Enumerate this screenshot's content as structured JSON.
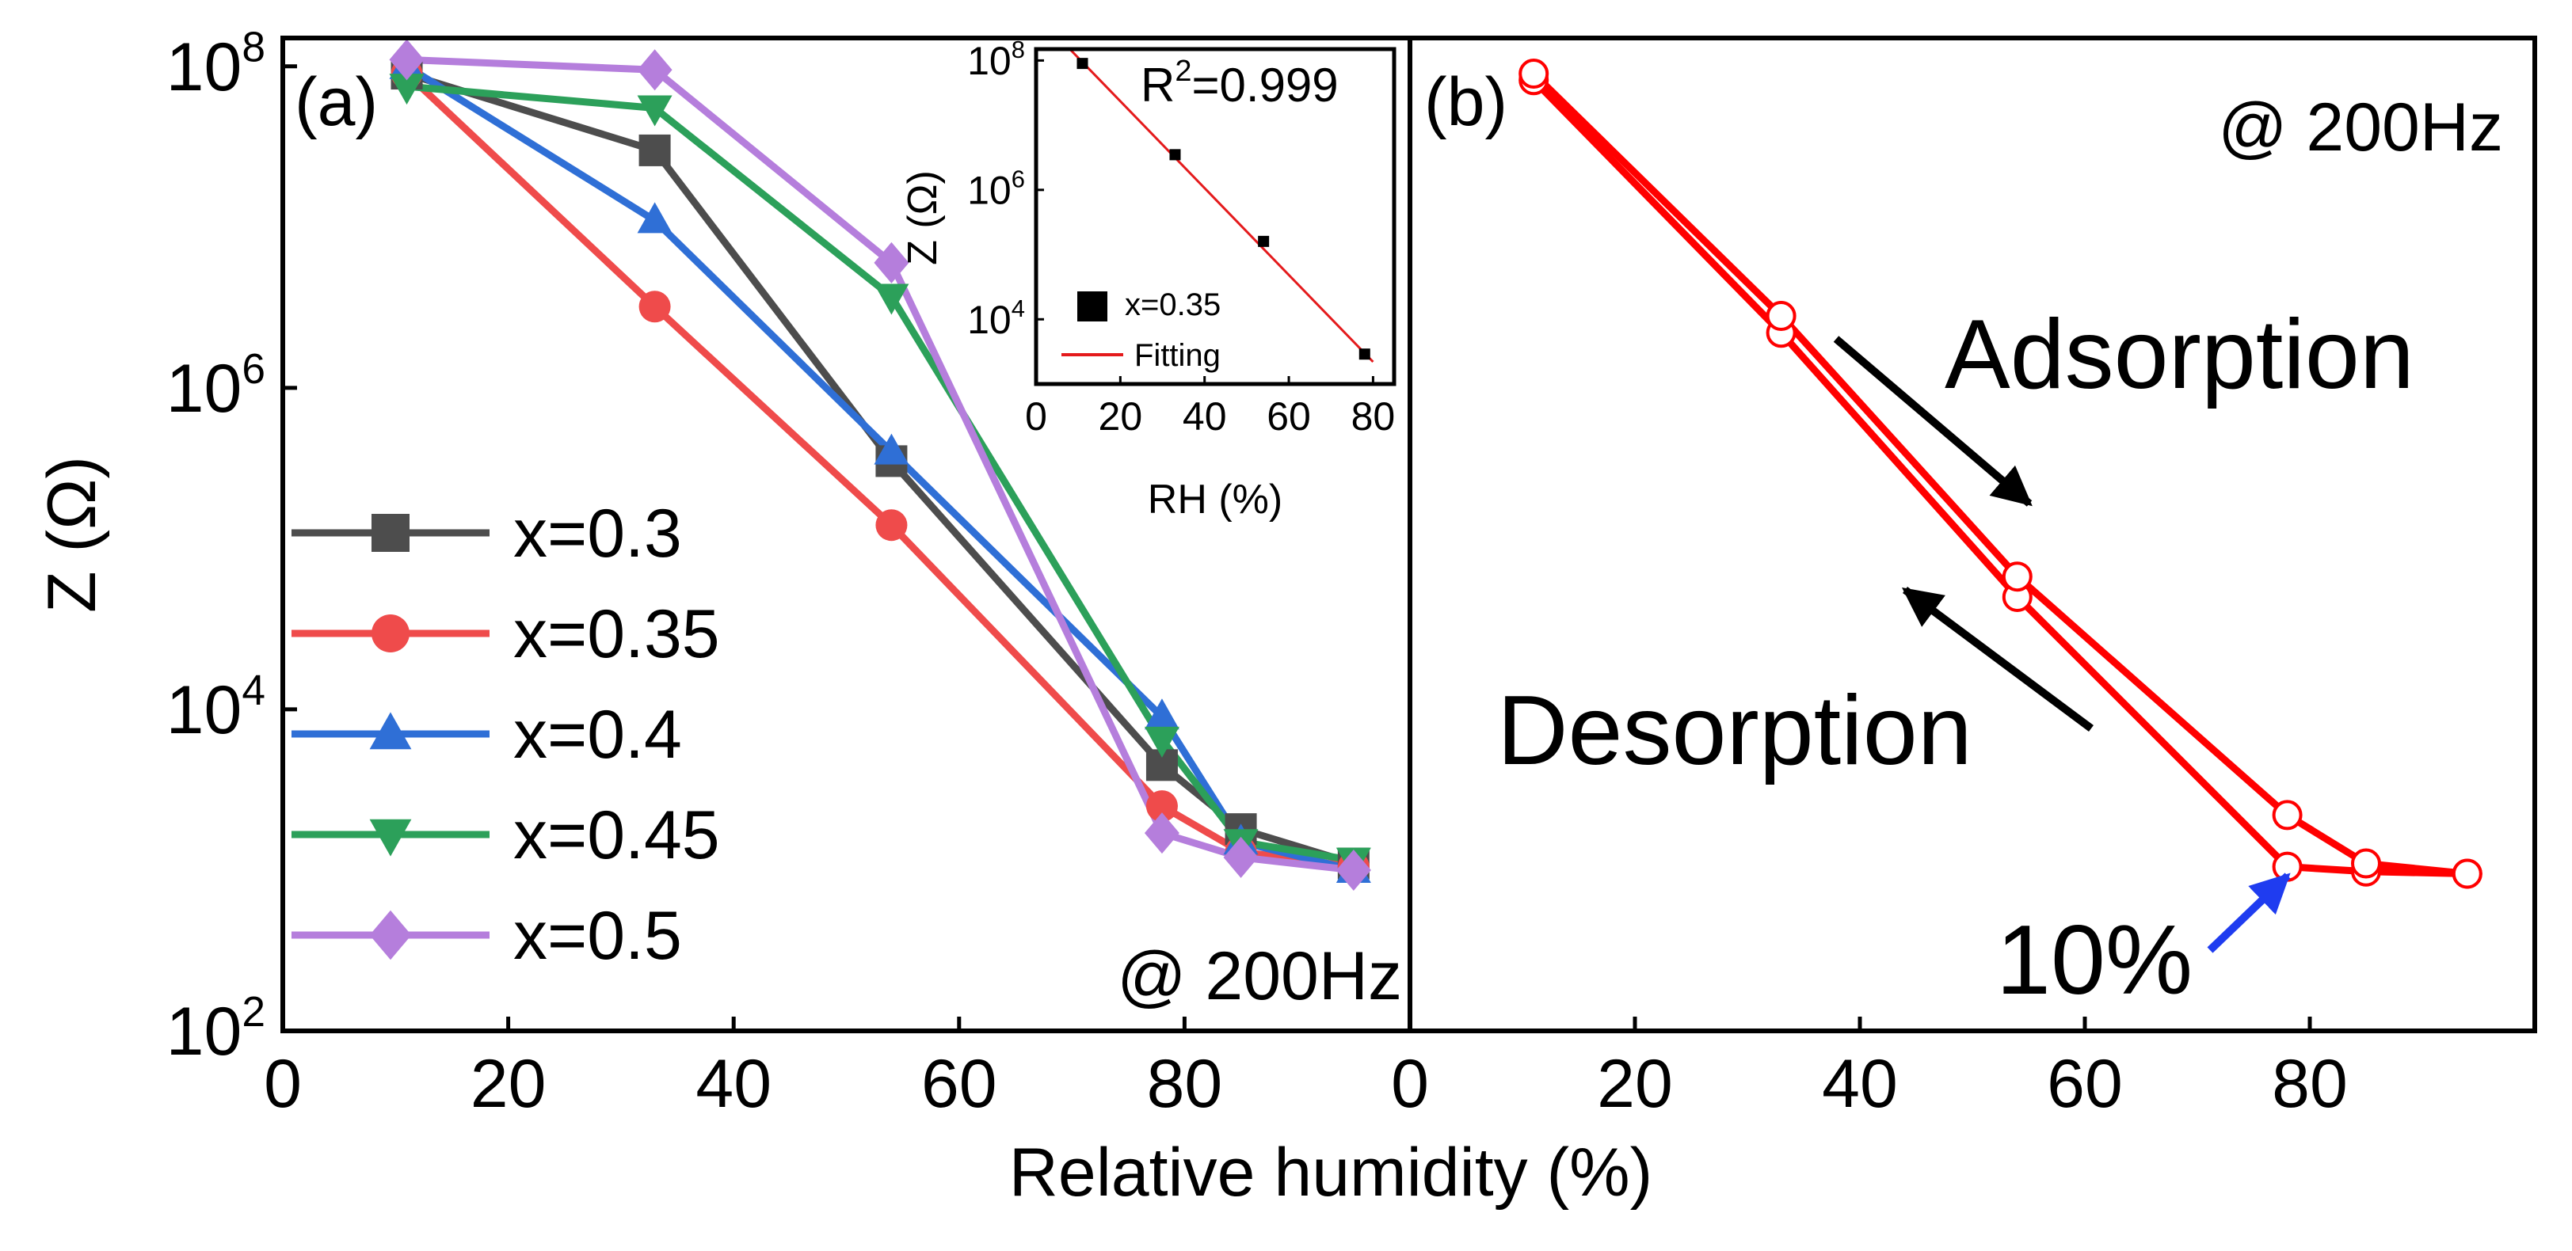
{
  "figure": {
    "xlabel": "Relative humidity (%)",
    "ylabel_main": "Z",
    "ylabel_unit": "(Ω)"
  },
  "chart_data": [
    {
      "id": "a",
      "type": "line",
      "panel_label": "(a)",
      "annotation": "@ 200Hz",
      "xlabel": "Relative humidity (%)",
      "ylabel": "Z (Ω)",
      "yscale": "log",
      "xlim": [
        0,
        100
      ],
      "ylim": [
        100,
        150000000
      ],
      "x_ticks": [
        0,
        20,
        40,
        60,
        80
      ],
      "y_ticks": [
        {
          "value": 100,
          "base": "10",
          "exp": "2"
        },
        {
          "value": 10000,
          "base": "10",
          "exp": "4"
        },
        {
          "value": 1000000,
          "base": "10",
          "exp": "6"
        },
        {
          "value": 100000000,
          "base": "10",
          "exp": "8"
        }
      ],
      "x": [
        11,
        33,
        54,
        78,
        85,
        95
      ],
      "series": [
        {
          "name": "x=0.3",
          "color": "#4d4d4d",
          "marker": "square",
          "values": [
            90000000,
            30000000,
            350000,
            4500,
            1800,
            1100
          ]
        },
        {
          "name": "x=0.35",
          "color": "#ef4b4b",
          "marker": "circle",
          "values": [
            90000000,
            3200000,
            140000,
            2500,
            1300,
            1050
          ]
        },
        {
          "name": "x=0.4",
          "color": "#2f6fd6",
          "marker": "triangle-up",
          "values": [
            100000000,
            11000000,
            400000,
            9000,
            1500,
            1000
          ]
        },
        {
          "name": "x=0.45",
          "color": "#2ca05a",
          "marker": "triangle-down",
          "values": [
            75000000,
            55000000,
            3700000,
            6500,
            1500,
            1150
          ]
        },
        {
          "name": "x=0.5",
          "color": "#b57edc",
          "marker": "diamond",
          "values": [
            110000000,
            95000000,
            6000000,
            1700,
            1200,
            1000
          ]
        }
      ]
    },
    {
      "id": "inset",
      "type": "scatter",
      "ylabel": "Z (Ω)",
      "xlabel": "RH (%)",
      "r2_label": "R",
      "r2_sup": "2",
      "r2_value": "=0.999",
      "yscale": "log",
      "xlim": [
        0,
        85
      ],
      "ylim": [
        1000,
        150000000
      ],
      "x_ticks": [
        0,
        20,
        40,
        60,
        80
      ],
      "y_ticks": [
        {
          "value": 10000,
          "base": "10",
          "exp": "4"
        },
        {
          "value": 1000000,
          "base": "10",
          "exp": "6"
        },
        {
          "value": 100000000,
          "base": "10",
          "exp": "8"
        }
      ],
      "points": {
        "name": "x=0.35",
        "color": "#000000",
        "x": [
          11,
          33,
          54,
          78
        ],
        "y": [
          90000000,
          3500000,
          160000,
          2900
        ]
      },
      "fit": {
        "name": "Fitting",
        "color": "#e41a1c",
        "x": [
          8,
          80
        ],
        "y": [
          150000000,
          2200
        ]
      }
    },
    {
      "id": "b",
      "type": "line",
      "panel_label": "(b)",
      "annotation": "@ 200Hz",
      "adsorption_label": "Adsorption",
      "desorption_label": "Desorption",
      "hysteresis_label": "10%",
      "xlabel": "Relative humidity (%)",
      "yscale": "log",
      "xlim": [
        0,
        100
      ],
      "ylim": [
        100,
        150000000
      ],
      "x_ticks": [
        0,
        20,
        40,
        60,
        80
      ],
      "color": "#ff0000",
      "series": [
        {
          "name": "Adsorption",
          "x": [
            11,
            33,
            54,
            78,
            85,
            94
          ],
          "values": [
            82000000,
            2200000,
            50000,
            1050,
            980,
            950
          ]
        },
        {
          "name": "Desorption",
          "x": [
            11,
            33,
            54,
            78,
            85,
            94
          ],
          "values": [
            90000000,
            2800000,
            67000,
            2200,
            1100,
            950
          ]
        }
      ],
      "arrow_colors": {
        "adsorption": "#000000",
        "desorption": "#000000",
        "hysteresis": "#1f3cf0"
      }
    }
  ]
}
